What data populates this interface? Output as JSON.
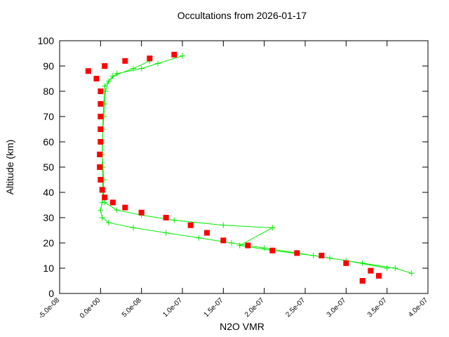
{
  "chart_data": {
    "type": "scatter",
    "title": "Occultations from 2026-01-17",
    "x_label": "N2O VMR",
    "y_label": "Altitude (km)",
    "xlim": [
      -5e-08,
      4e-07
    ],
    "xticks": [
      {
        "value": -5e-08,
        "label": "-5.0e-08"
      },
      {
        "value": 0,
        "label": "0.0e+00"
      },
      {
        "value": 5e-08,
        "label": "5.0e-08"
      },
      {
        "value": 1e-07,
        "label": "1.0e-07"
      },
      {
        "value": 1.5e-07,
        "label": "1.5e-07"
      },
      {
        "value": 2e-07,
        "label": "2.0e-07"
      },
      {
        "value": 2.5e-07,
        "label": "2.5e-07"
      },
      {
        "value": 3e-07,
        "label": "3.0e-07"
      },
      {
        "value": 3.5e-07,
        "label": "3.5e-07"
      },
      {
        "value": 4e-07,
        "label": "4.0e-07"
      }
    ],
    "ylim": [
      0,
      100
    ],
    "yticks": [
      0,
      10,
      20,
      30,
      40,
      50,
      60,
      70,
      80,
      90,
      100
    ],
    "series": [
      {
        "color": "#00ee00",
        "style": "linespoints",
        "x": [
          3.8e-07,
          3.6e-07,
          3.2e-07,
          2.8e-07,
          2.4e-07,
          2e-07,
          1.6e-07,
          1.2e-07,
          8e-08,
          4e-08,
          1e-08,
          2e-09,
          0,
          2e-09,
          3e-09,
          4e-09,
          3e-09,
          2e-09,
          2e-09,
          3e-09,
          4e-09,
          5e-09,
          6e-09,
          1e-08,
          2e-08,
          5e-08,
          7e-08,
          1e-07,
          null,
          3.5e-07,
          3e-07,
          2.6e-07,
          2.1e-07,
          1.7e-07,
          2.1e-07,
          1.5e-07,
          9e-08,
          5e-08,
          2e-08,
          5e-09,
          3e-09,
          2e-09,
          3e-09,
          5e-09,
          1.5e-08,
          4e-08,
          6e-08
        ],
        "y": [
          8,
          10,
          12,
          14,
          16,
          18,
          20,
          22,
          24,
          26,
          28,
          30,
          33,
          36,
          40,
          45,
          50,
          55,
          60,
          65,
          70,
          75,
          80,
          84,
          87,
          89,
          91,
          94,
          null,
          10,
          13,
          15,
          17,
          19,
          26,
          27,
          29,
          31,
          33,
          36,
          42,
          50,
          70,
          82,
          86,
          89,
          92
        ]
      },
      {
        "color": "#ff0000",
        "style": "points",
        "x": [
          3.2e-07,
          3.4e-07,
          3.3e-07,
          3e-07,
          2.7e-07,
          2.4e-07,
          2.1e-07,
          1.8e-07,
          1.5e-07,
          1.3e-07,
          1.1e-07,
          8e-08,
          5e-08,
          3e-08,
          1.5e-08,
          5e-09,
          2e-09,
          0,
          -1e-09,
          -1e-09,
          0,
          0,
          0,
          0,
          0,
          -5e-09,
          -1.5e-08,
          5e-09,
          3e-08,
          6e-08,
          9e-08
        ],
        "y": [
          5,
          7,
          9,
          12,
          15,
          16,
          17,
          19,
          21,
          24,
          27,
          30,
          32,
          34,
          36,
          38,
          41,
          45,
          50,
          55,
          60,
          65,
          70,
          75,
          80,
          85,
          88,
          90,
          92,
          93,
          94.5
        ]
      }
    ]
  }
}
